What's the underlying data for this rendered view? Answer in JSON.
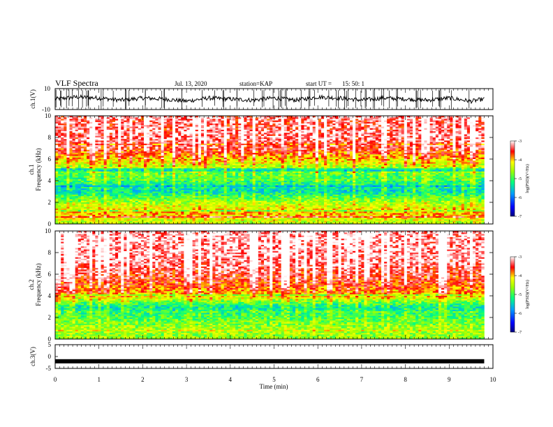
{
  "header": {
    "title": "VLF Spectra",
    "date": "Jul. 13, 2020",
    "station": "station=KAP",
    "start_label": "start UT =",
    "start_time": "15: 50: 1"
  },
  "panels": {
    "ch1": {
      "label": "ch.1(V)",
      "tick_top": "10",
      "tick_bottom": "-10",
      "ylim": [
        -10,
        10
      ]
    },
    "spec1": {
      "label_line1": "ch.1",
      "label_line2": "Frequency (kHz)",
      "yticks": [
        "0",
        "2",
        "4",
        "6",
        "8",
        "10"
      ],
      "ylim": [
        0,
        10
      ]
    },
    "spec2": {
      "label_line1": "ch.2",
      "label_line2": "Frequency (kHz)",
      "yticks": [
        "0",
        "2",
        "4",
        "6",
        "8",
        "10"
      ],
      "ylim": [
        0,
        10
      ]
    },
    "ch3": {
      "label": "ch.3(V)",
      "yticks": [
        "5",
        "0",
        "-5"
      ],
      "ylim": [
        -5,
        5
      ]
    }
  },
  "x_axis": {
    "label": "Time (min)",
    "ticks": [
      "0",
      "1",
      "2",
      "3",
      "4",
      "5",
      "6",
      "7",
      "8",
      "9",
      "10"
    ],
    "xlim": [
      0,
      10
    ]
  },
  "colorbars": {
    "label": "log(PSD)(V²/Hz)",
    "ticks": [
      "-3",
      "-4",
      "-5",
      "-6",
      "-7"
    ],
    "range": [
      -7,
      -3
    ]
  },
  "chart_data": [
    {
      "type": "line",
      "name": "ch.1(V)",
      "xlabel": "Time (min)",
      "ylabel": "ch.1(V)",
      "xlim": [
        0,
        10
      ],
      "ylim": [
        -10,
        10
      ],
      "x": [
        0,
        0.5,
        1,
        1.5,
        2,
        2.5,
        3,
        3.5,
        4,
        4.5,
        5,
        5.5,
        6,
        6.5,
        7,
        7.5,
        8,
        8.5,
        9,
        9.5,
        9.8
      ],
      "y": [
        0,
        2,
        1,
        -1,
        1,
        0,
        -2,
        1,
        0,
        -1,
        1,
        -1,
        2,
        1,
        -1,
        1,
        0,
        -1,
        1,
        -2,
        0
      ]
    },
    {
      "type": "heatmap",
      "name": "ch.1",
      "xlabel": "Time (min)",
      "ylabel": "Frequency (kHz)",
      "xlim": [
        0,
        10
      ],
      "ylim": [
        0,
        10
      ],
      "colorbar_label": "log(PSD)(V²/Hz)",
      "colorbar_range": [
        -7,
        -3
      ],
      "freq_kHz": [
        0,
        1,
        2,
        3,
        4,
        5,
        6,
        7,
        8,
        9,
        10
      ],
      "mean_log_psd": [
        -4.5,
        -4.0,
        -4.6,
        -5.5,
        -5.2,
        -4.8,
        -4.2,
        -3.6,
        -3.4,
        -3.5,
        -3.4
      ],
      "x_end": 9.8
    },
    {
      "type": "heatmap",
      "name": "ch.2",
      "xlabel": "Time (min)",
      "ylabel": "Frequency (kHz)",
      "xlim": [
        0,
        10
      ],
      "ylim": [
        0,
        10
      ],
      "colorbar_label": "log(PSD)(V²/Hz)",
      "colorbar_range": [
        -7,
        -3
      ],
      "freq_kHz": [
        0,
        1,
        2,
        3,
        4,
        5,
        6,
        7,
        8,
        9,
        10
      ],
      "mean_log_psd": [
        -4.6,
        -4.6,
        -5.0,
        -5.4,
        -4.2,
        -3.8,
        -3.6,
        -3.4,
        -3.3,
        -3.3,
        -3.3
      ],
      "x_end": 9.8
    },
    {
      "type": "line",
      "name": "ch.3(V)",
      "xlabel": "Time (min)",
      "ylabel": "ch.3(V)",
      "xlim": [
        0,
        10
      ],
      "ylim": [
        -5,
        5
      ],
      "x": [
        0,
        9.8
      ],
      "y": [
        -2,
        -2
      ]
    }
  ]
}
